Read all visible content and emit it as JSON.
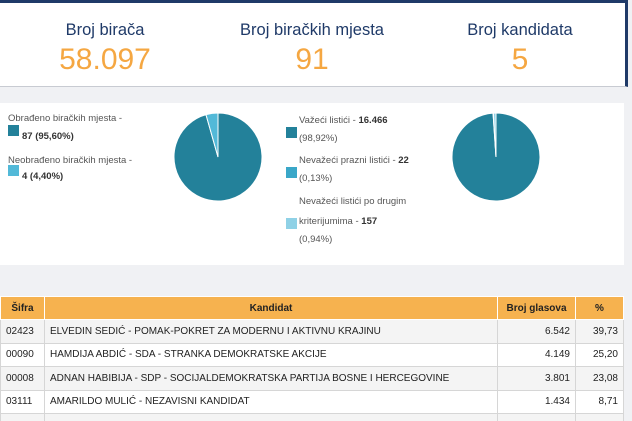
{
  "stats": [
    {
      "label": "Broj birača",
      "value": "58.097"
    },
    {
      "label": "Broj biračkih mjesta",
      "value": "91"
    },
    {
      "label": "Broj kandidata",
      "value": "5"
    }
  ],
  "polling_stations": {
    "legend": [
      {
        "label": "Obrađeno biračkih mjesta -",
        "value": "87 (95,60%)",
        "color": "#23819a"
      },
      {
        "label": "Neobrađeno biračkih mjesta -",
        "value": "4 (4,40%)",
        "color": "#52b9d8"
      }
    ],
    "chart_data": {
      "type": "pie",
      "labels": [
        "Obrađeno biračkih mjesta",
        "Neobrađeno biračkih mjesta"
      ],
      "values": [
        95.6,
        4.4
      ],
      "colors": [
        "#23819a",
        "#52b9d8"
      ]
    }
  },
  "ballots": {
    "legend": [
      {
        "label": "Važeći listići -",
        "value": "16.466",
        "pct": "(98,92%)",
        "color": "#23819a"
      },
      {
        "label": "Nevažeći prazni listići -",
        "value": "22",
        "pct": "(0,13%)",
        "color": "#3aa7c8"
      },
      {
        "label_1": "Nevažeći listići po drugim",
        "label_2": "kriterijumima -",
        "value": "157",
        "pct": "(0,94%)",
        "color": "#8fd1e6"
      }
    ],
    "chart_data": {
      "type": "pie",
      "labels": [
        "Važeći listići",
        "Nevažeći prazni listići",
        "Nevažeći listići po drugim kriterijumima"
      ],
      "values": [
        98.92,
        0.13,
        0.94
      ],
      "colors": [
        "#23819a",
        "#3aa7c8",
        "#8fd1e6"
      ]
    }
  },
  "results": {
    "headers": {
      "code": "Šifra",
      "candidate": "Kandidat",
      "votes": "Broj glasova",
      "pct": "%"
    },
    "rows": [
      {
        "code": "02423",
        "candidate": "ELVEDIN SEDIĆ - POMAK-POKRET ZA MODERNU I AKTIVNU KRAJINU",
        "votes": "6.542",
        "pct": "39,73"
      },
      {
        "code": "00090",
        "candidate": "HAMDIJA ABDIĆ - SDA - STRANKA DEMOKRATSKE AKCIJE",
        "votes": "4.149",
        "pct": "25,20"
      },
      {
        "code": "00008",
        "candidate": "ADNAN HABIBIJA - SDP - SOCIJALDEMOKRATSKA PARTIJA BOSNE I HERCEGOVINE",
        "votes": "3.801",
        "pct": "23,08"
      },
      {
        "code": "03111",
        "candidate": "AMARILDO MULIĆ - NEZAVISNI KANDIDAT",
        "votes": "1.434",
        "pct": "8,71"
      },
      {
        "code": "",
        "candidate": "",
        "votes": "",
        "pct": ""
      }
    ]
  }
}
